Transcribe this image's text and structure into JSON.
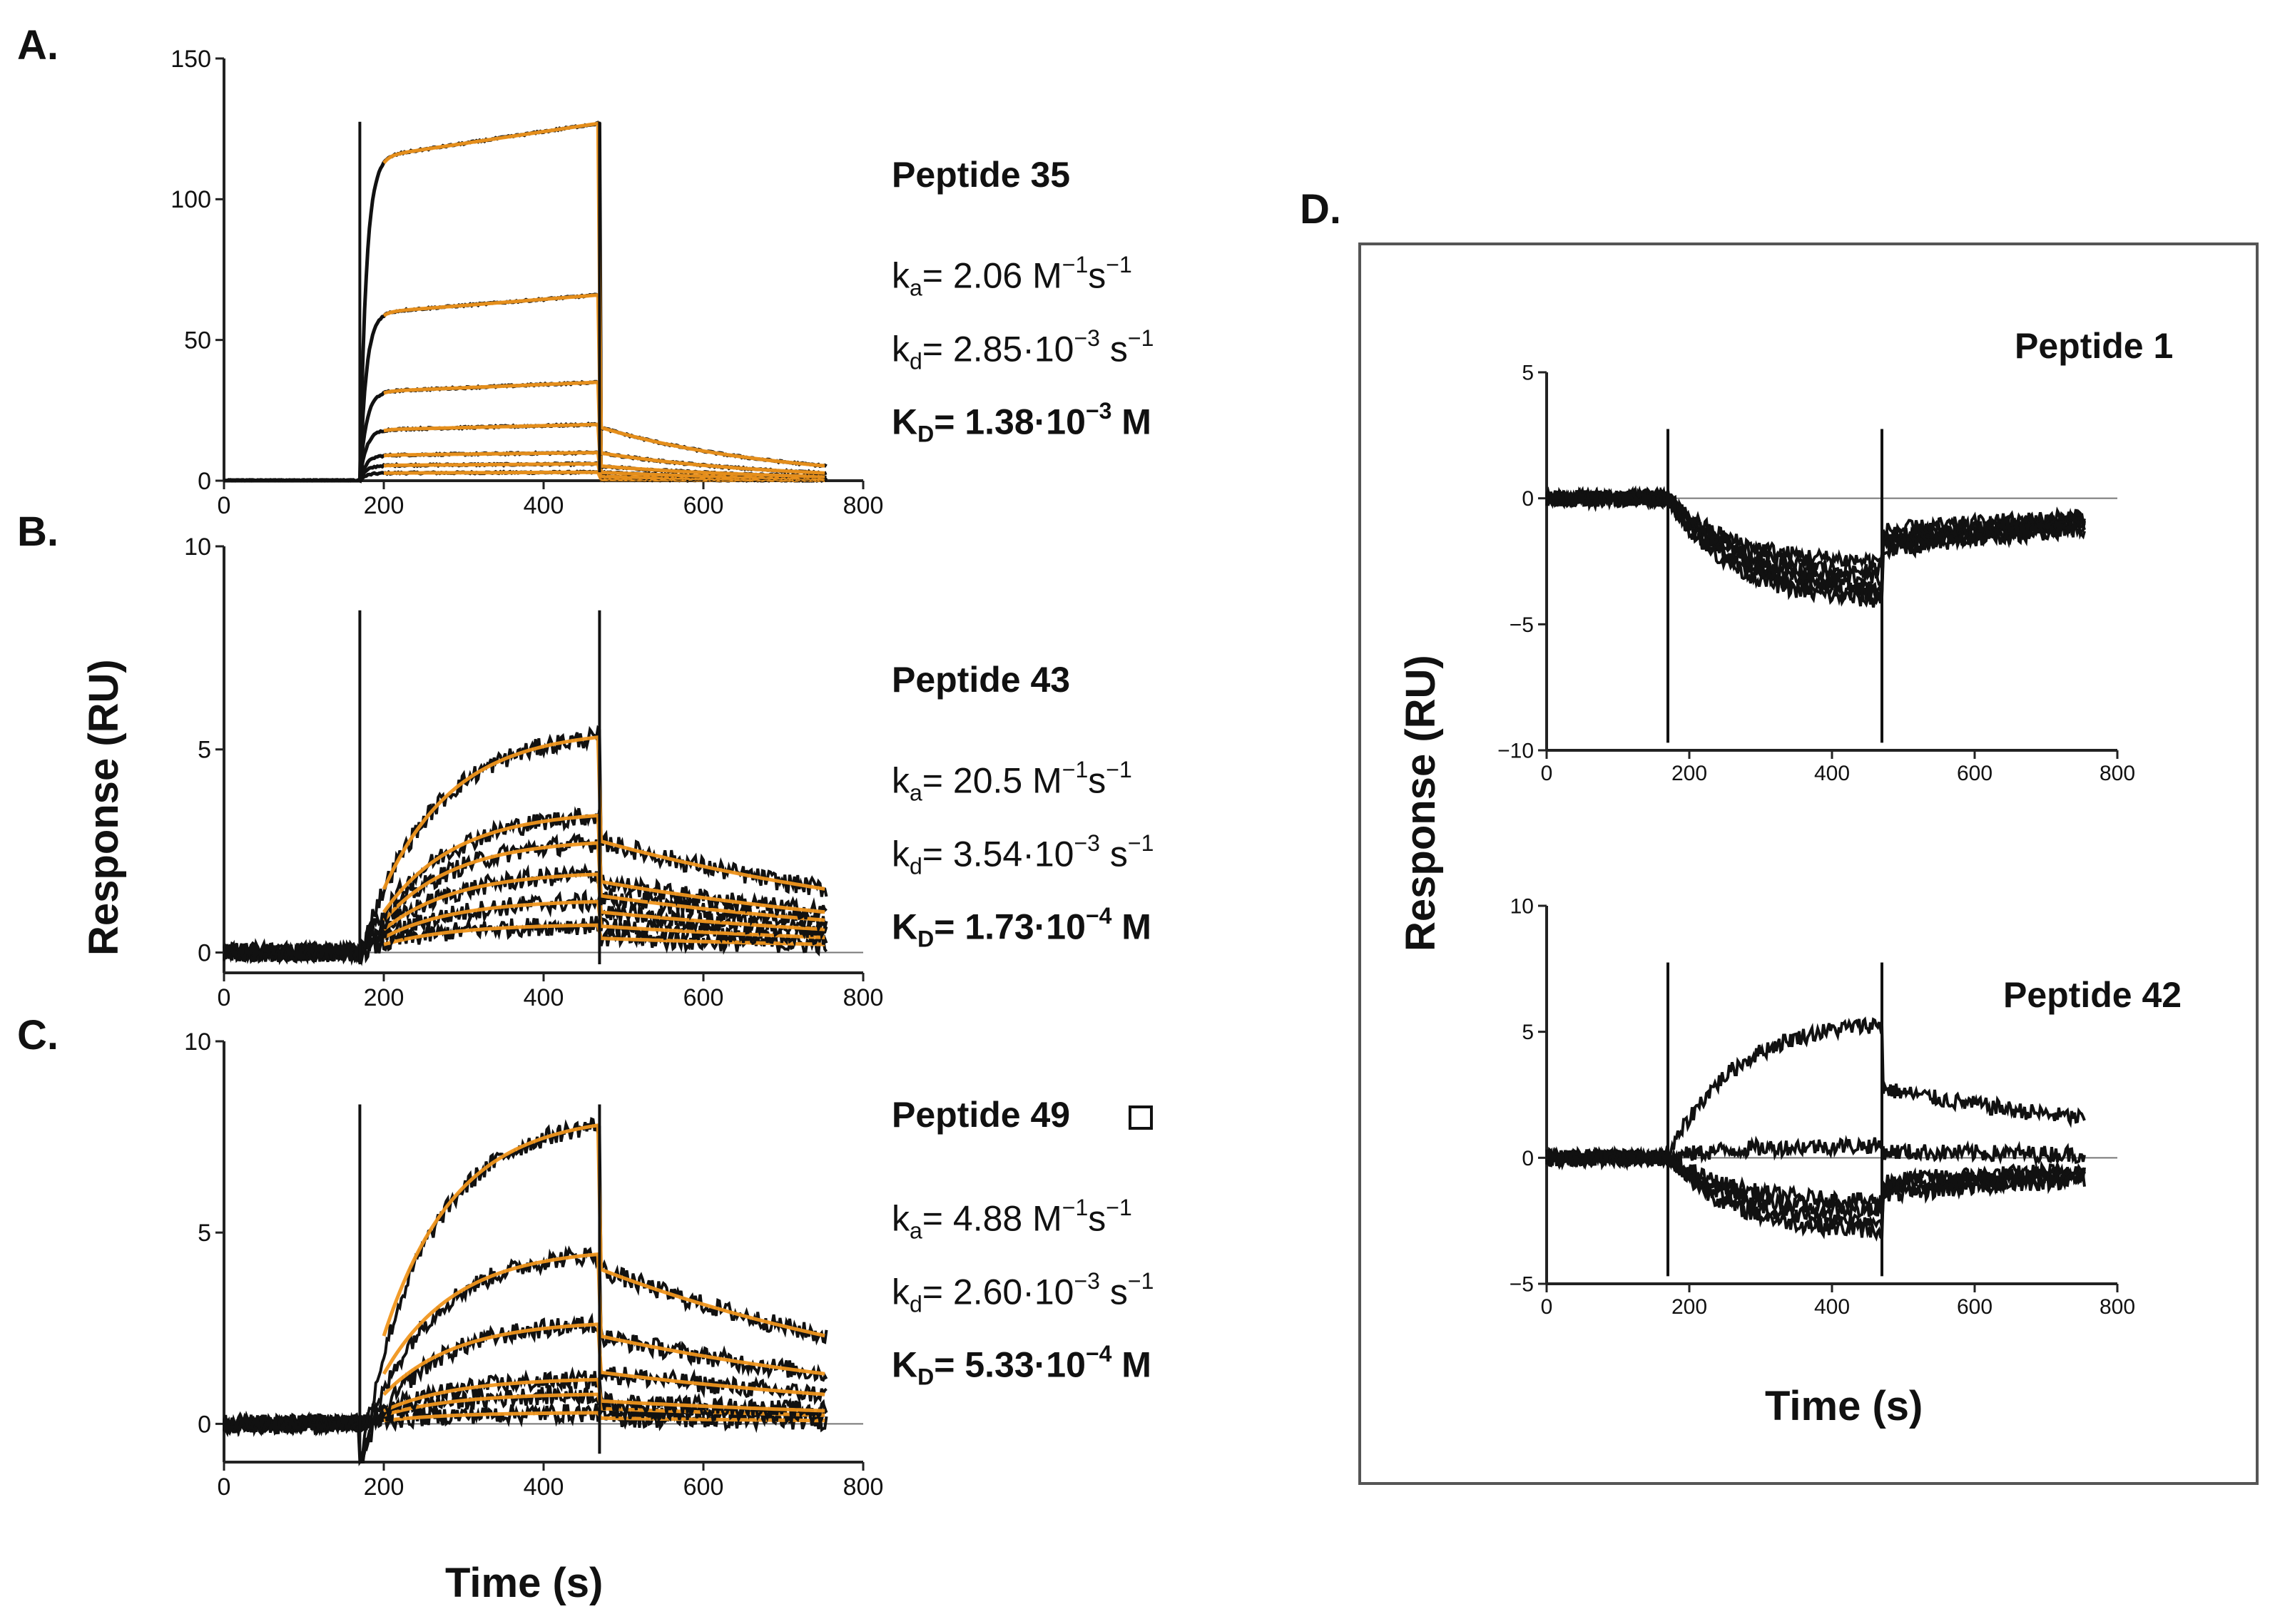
{
  "panels": [
    {
      "id": "A",
      "letter": "A.",
      "peptide": "Peptide 35",
      "ka_val": "2.06",
      "kd_val": "2.85·10",
      "kd_exp": "−3",
      "KD_val": "1.38·10",
      "KD_exp": "−3",
      "unit_M": "M",
      "unit_Ms": "M",
      "unit_s": "s",
      "exp_neg1": "−1"
    },
    {
      "id": "B",
      "letter": "B.",
      "peptide": "Peptide 43",
      "ka_val": "20.5",
      "kd_val": "3.54·10",
      "kd_exp": "−3",
      "KD_val": "1.73·10",
      "KD_exp": "−4",
      "unit_M": "M",
      "unit_Ms": "M",
      "unit_s": "s",
      "exp_neg1": "−1"
    },
    {
      "id": "C",
      "letter": "C.",
      "peptide": "Peptide 49",
      "ka_val": "4.88",
      "kd_val": "2.60·10",
      "kd_exp": "−3",
      "KD_val": "5.33·10",
      "KD_exp": "−4",
      "unit_M": "M",
      "unit_Ms": "M",
      "unit_s": "s",
      "exp_neg1": "−1"
    }
  ],
  "panel_d": {
    "letter": "D.",
    "top_title": "Peptide 1",
    "bottom_title": "Peptide 42"
  },
  "labels": {
    "ylabel": "Response (RU)",
    "xlabel": "Time (s)",
    "k_sym": "k",
    "a_sub": "a",
    "d_sub": "d",
    "K_sym": "K",
    "D_sub": "D",
    "eq": "= "
  },
  "colors": {
    "trace": "#111111",
    "fit": "#f0961e",
    "axis": "#222222",
    "baseline": "#777777"
  },
  "chart_data": [
    {
      "id": "A",
      "type": "line",
      "title": "Peptide 35",
      "xlabel": "Time (s)",
      "ylabel": "Response (RU)",
      "xlim": [
        0,
        800
      ],
      "ylim": [
        0,
        150
      ],
      "xticks": [
        0,
        200,
        400,
        600,
        800
      ],
      "yticks": [
        0,
        50,
        100,
        150
      ],
      "injection_start": 170,
      "injection_end": 470,
      "end_time": 755,
      "series_plateau": [
        3,
        6,
        10,
        20,
        35,
        66,
        127
      ]
    },
    {
      "id": "B",
      "type": "line",
      "title": "Peptide 43",
      "xlabel": "Time (s)",
      "ylabel": "Response (RU)",
      "xlim": [
        0,
        800
      ],
      "ylim": [
        -0.5,
        10
      ],
      "xticks": [
        0,
        200,
        400,
        600,
        800
      ],
      "yticks": [
        0,
        5,
        10
      ],
      "injection_start": 170,
      "injection_end": 470,
      "end_time": 755,
      "series_plateau": [
        0.7,
        1.3,
        2.0,
        2.8,
        3.5,
        5.5
      ]
    },
    {
      "id": "C",
      "type": "line",
      "title": "Peptide 49",
      "xlabel": "Time (s)",
      "ylabel": "Response (RU)",
      "xlim": [
        0,
        800
      ],
      "ylim": [
        -1,
        10
      ],
      "xticks": [
        0,
        200,
        400,
        600,
        800
      ],
      "yticks": [
        0,
        5,
        10
      ],
      "injection_start": 170,
      "injection_end": 470,
      "end_time": 755,
      "series_plateau": [
        0.3,
        0.8,
        1.2,
        2.7,
        4.6,
        8.1
      ]
    },
    {
      "id": "D1",
      "type": "line",
      "title": "Peptide 1",
      "xlabel": "Time (s)",
      "ylabel": "Response (RU)",
      "xlim": [
        0,
        800
      ],
      "ylim": [
        -10,
        5
      ],
      "xticks": [
        0,
        200,
        400,
        600,
        800
      ],
      "yticks": [
        -10,
        -5,
        0,
        5
      ],
      "injection_start": 170,
      "injection_end": 470,
      "end_time": 755,
      "series_plateau": [
        -2.6,
        -3.0,
        -3.3,
        -3.6,
        -3.9,
        -4.2
      ]
    },
    {
      "id": "D2",
      "type": "line",
      "title": "Peptide 42",
      "xlabel": "Time (s)",
      "ylabel": "Response (RU)",
      "xlim": [
        0,
        800
      ],
      "ylim": [
        -5,
        10
      ],
      "xticks": [
        0,
        200,
        400,
        600,
        800
      ],
      "yticks": [
        -5,
        0,
        5,
        10
      ],
      "injection_start": 170,
      "injection_end": 470,
      "end_time": 755,
      "series_plateau": [
        5.5,
        0.5,
        -1.8,
        -2.2,
        -2.6,
        -3.0
      ]
    }
  ]
}
